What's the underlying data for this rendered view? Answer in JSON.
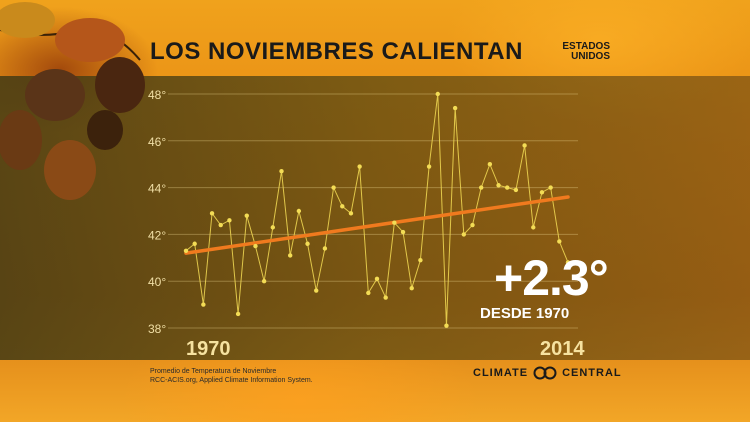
{
  "header": {
    "title": "LOS NOVIEMBRES CALIENTAN",
    "region_line1": "ESTADOS",
    "region_line2": "UNIDOS"
  },
  "highlight": {
    "value": "+2.3°",
    "subtitle": "DESDE 1970"
  },
  "source": {
    "line1": "Promedio de Temperatura de Noviembre",
    "line2": "RCC-ACIS.org, Applied Climate Information System."
  },
  "brand": {
    "word1": "CLIMATE",
    "word2": "CENTRAL"
  },
  "colors": {
    "series": "#f3dc55",
    "trend": "#f07a1e",
    "axis_text": "#f1dfa6"
  },
  "chart_data": {
    "type": "line",
    "title": "LOS NOVIEMBRES CALIENTAN",
    "xlabel": "",
    "ylabel": "",
    "x_start_label": "1970",
    "x_end_label": "2014",
    "xlim": [
      1970,
      2014
    ],
    "ylim": [
      38,
      48
    ],
    "y_ticks": [
      "38°",
      "40°",
      "42°",
      "44°",
      "46°",
      "48°"
    ],
    "grid": true,
    "x": [
      1970,
      1971,
      1972,
      1973,
      1974,
      1975,
      1976,
      1977,
      1978,
      1979,
      1980,
      1981,
      1982,
      1983,
      1984,
      1985,
      1986,
      1987,
      1988,
      1989,
      1990,
      1991,
      1992,
      1993,
      1994,
      1995,
      1996,
      1997,
      1998,
      1999,
      2000,
      2001,
      2002,
      2003,
      2004,
      2005,
      2006,
      2007,
      2008,
      2009,
      2010,
      2011,
      2012,
      2013,
      2014
    ],
    "series": [
      {
        "values": [
          41.3,
          41.6,
          39.0,
          42.9,
          42.4,
          42.6,
          38.6,
          42.8,
          41.5,
          40.0,
          42.3,
          44.7,
          41.1,
          43.0,
          41.6,
          39.6,
          41.4,
          44.0,
          43.2,
          42.9,
          44.9,
          39.5,
          40.1,
          39.3,
          42.5,
          42.1,
          39.7,
          40.9,
          44.9,
          48.0,
          38.1,
          47.4,
          42.0,
          42.4,
          44.0,
          45.0,
          44.1,
          44.0,
          43.9,
          45.8,
          42.3,
          43.8,
          44.0,
          41.7,
          40.8
        ]
      }
    ],
    "trend": {
      "start": [
        1970,
        41.2
      ],
      "end": [
        2014,
        43.6
      ]
    }
  }
}
